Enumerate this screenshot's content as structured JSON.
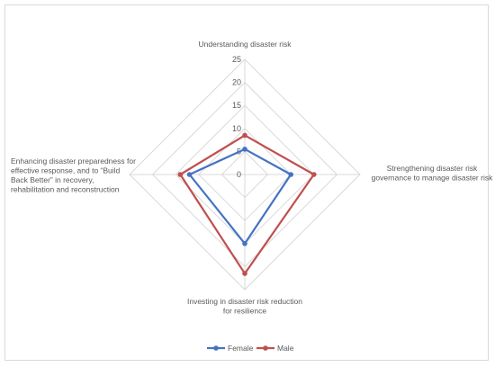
{
  "chart_data": {
    "type": "radar",
    "axes": [
      [
        "Understanding disaster risk"
      ],
      [
        "Strengthening disaster risk",
        "governance to manage disaster risk"
      ],
      [
        "Investing in disaster risk reduction",
        "for resilience"
      ],
      [
        "Enhancing disaster preparedness for",
        "effective response, and to “Build",
        "Back Better” in recovery,",
        "rehabilitation and reconstruction"
      ]
    ],
    "r_ticks": [
      "0",
      "5",
      "10",
      "15",
      "20",
      "25"
    ],
    "rlim": [
      0,
      25
    ],
    "grid": true,
    "legend_position": "bottom",
    "series": [
      {
        "name": "Female",
        "color": "#4472C4",
        "values": [
          5.5,
          10,
          15,
          12
        ]
      },
      {
        "name": "Male",
        "color": "#C0504D",
        "values": [
          8.5,
          15,
          21.5,
          14
        ]
      }
    ]
  }
}
